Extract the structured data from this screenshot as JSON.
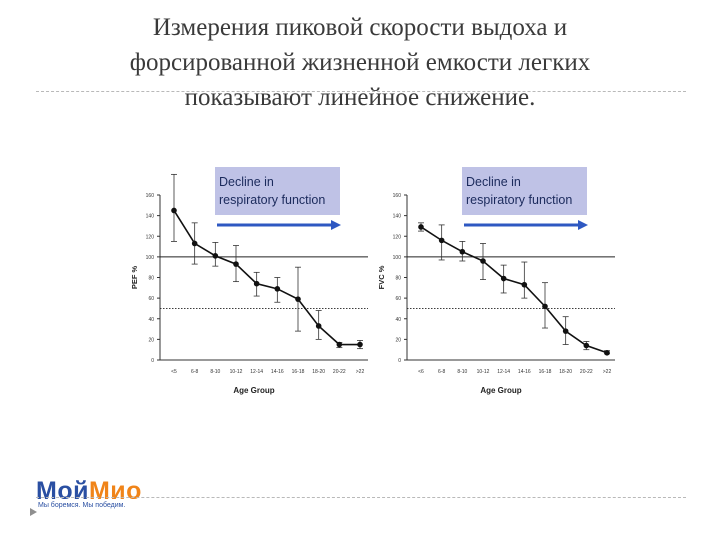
{
  "slide": {
    "title_lines": [
      "Измерения пиковой скорости выдоха и",
      "форсированной жизненной емкости легких",
      "показывают линейное снижение."
    ]
  },
  "logo": {
    "part1": "Мой",
    "part2": "Мио",
    "tagline": "Мы боремся. Мы победим."
  },
  "colors": {
    "banner": "#bfc2e6",
    "arrow": "#2e58c2",
    "marks": "#111111",
    "title": "#3a3a3a"
  },
  "chart_data": [
    {
      "type": "line",
      "banner": [
        "Decline in",
        "respiratory function"
      ],
      "ylabel": "PEF %",
      "xlabel": "Age Group",
      "categories": [
        "<5",
        "6-8",
        "8-10",
        "10-12",
        "12-14",
        "14-16",
        "16-18",
        "18-20",
        "20-22",
        ">22"
      ],
      "ylim": [
        0,
        160
      ],
      "yticks": [
        0,
        20,
        40,
        60,
        80,
        100,
        120,
        140,
        160
      ],
      "reference_lines": [
        {
          "y": 100,
          "style": "solid"
        },
        {
          "y": 50,
          "style": "dotted"
        }
      ],
      "series": [
        {
          "values": [
            145,
            113,
            101,
            93,
            74,
            69,
            59,
            33,
            15,
            15
          ],
          "error_low": [
            115,
            93,
            91,
            76,
            62,
            56,
            28,
            20,
            12,
            11
          ],
          "error_high": [
            180,
            133,
            114,
            111,
            85,
            80,
            90,
            48,
            17,
            19
          ]
        }
      ]
    },
    {
      "type": "line",
      "banner": [
        "Decline in",
        "respiratory function"
      ],
      "ylabel": "FVC %",
      "xlabel": "Age Group",
      "categories": [
        "<6",
        "6-8",
        "8-10",
        "10-12",
        "12-14",
        "14-16",
        "16-18",
        "18-20",
        "20-22",
        ">22"
      ],
      "ylim": [
        0,
        160
      ],
      "yticks": [
        0,
        20,
        40,
        60,
        80,
        100,
        120,
        140,
        160
      ],
      "reference_lines": [
        {
          "y": 100,
          "style": "solid"
        },
        {
          "y": 50,
          "style": "dotted"
        }
      ],
      "series": [
        {
          "values": [
            129,
            116,
            105,
            96,
            79,
            73,
            52,
            28,
            14,
            7
          ],
          "error_low": [
            125,
            97,
            96,
            78,
            65,
            60,
            31,
            15,
            10,
            6
          ],
          "error_high": [
            133,
            131,
            115,
            113,
            92,
            95,
            75,
            42,
            18,
            9
          ]
        }
      ]
    }
  ]
}
